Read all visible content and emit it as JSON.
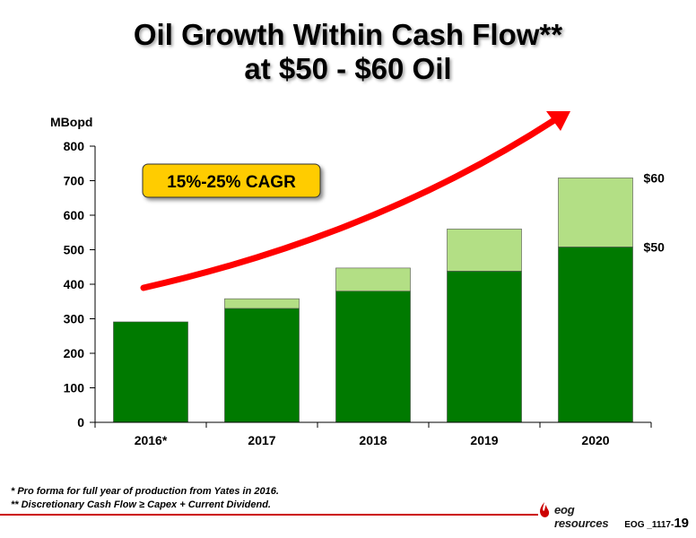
{
  "slide": {
    "title_line1": "Oil Growth Within Cash Flow**",
    "title_line2": "at $50 - $60 Oil"
  },
  "chart_data": {
    "type": "bar",
    "stacked": true,
    "title": "",
    "ylabel": "MBopd",
    "xlabel": "",
    "ylim": [
      0,
      800
    ],
    "yticks": [
      0,
      100,
      200,
      300,
      400,
      500,
      600,
      700,
      800
    ],
    "grid": false,
    "categories": [
      "2016*",
      "2017",
      "2018",
      "2019",
      "2020"
    ],
    "series": [
      {
        "name": "$50",
        "color": "#007a00",
        "values": [
          291,
          330,
          380,
          438,
          508
        ]
      },
      {
        "name": "$60",
        "color": "#b3df85",
        "values": [
          0,
          28,
          67,
          122,
          200
        ]
      }
    ],
    "annotations": {
      "cagr_label": "15%-25% CAGR",
      "cagr_box_color": "#ffcc00",
      "arrow_color": "#ff0000"
    }
  },
  "footnotes": {
    "note1": "*  Pro forma for full year of production from Yates in 2016.",
    "note2": "** Discretionary Cash Flow ≥ Capex + Current Dividend."
  },
  "footer": {
    "logo_text": "eog resources",
    "slide_code": "EOG _1117-",
    "slide_number": "19",
    "rule_color": "#cc0000"
  }
}
